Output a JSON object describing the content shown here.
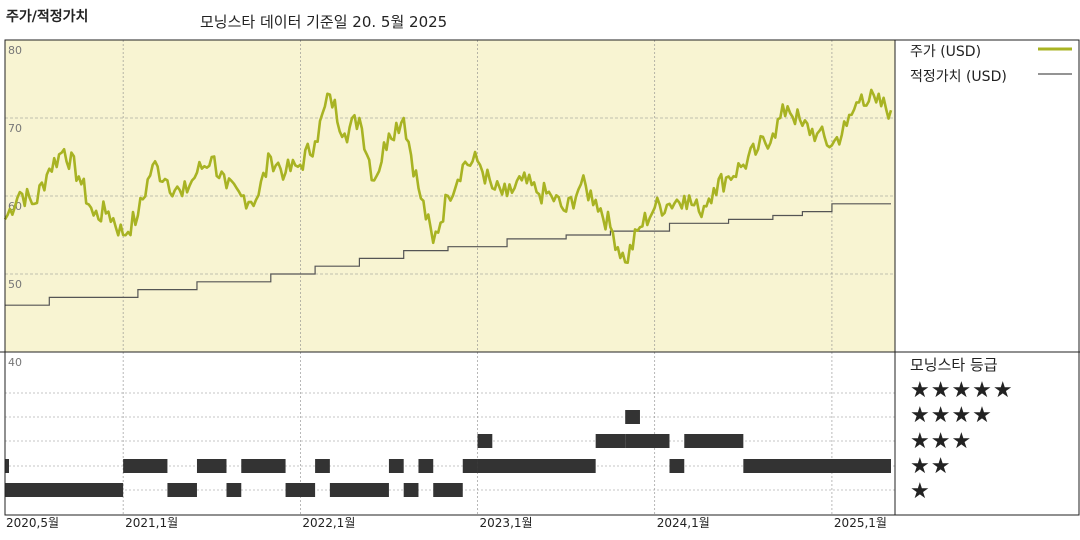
{
  "header": {
    "left_title": "주가/적정가치",
    "subtitle": "모닝스타 데이터 기준일 20. 5월 2025"
  },
  "legend": {
    "price_label": "주가 (USD)",
    "fair_value_label": "적정가치 (USD)",
    "price_color": "#a8b323",
    "fair_value_color": "#555555"
  },
  "rating_panel": {
    "title": "모닝스타 등급",
    "levels": [
      "★★★★★",
      "★★★★",
      "★★★",
      "★★",
      "★"
    ]
  },
  "colors": {
    "upper_bg": "#f8f4d2",
    "bar_color": "#333333",
    "grid": "#8a8a8a"
  },
  "chart_data": {
    "type": "line",
    "title": "주가/적정가치",
    "x_tick_labels": [
      "2020,5월",
      "2021,1월",
      "2022,1월",
      "2023,1월",
      "2024,1월",
      "2025,1월"
    ],
    "x_tick_dates": [
      "2020-05",
      "2021-01",
      "2022-01",
      "2023-01",
      "2024-01",
      "2025-01"
    ],
    "x_range": [
      "2020-05",
      "2025-05"
    ],
    "y_tick_labels": [
      "80",
      "70",
      "60",
      "50",
      "40"
    ],
    "ylim": [
      40,
      80
    ],
    "grid": true,
    "series": [
      {
        "name": "주가 (USD)",
        "x": [
          "2020-05",
          "2020-06",
          "2020-07",
          "2020-08",
          "2020-09",
          "2020-10",
          "2020-11",
          "2020-12",
          "2021-01",
          "2021-02",
          "2021-03",
          "2021-04",
          "2021-05",
          "2021-06",
          "2021-07",
          "2021-08",
          "2021-09",
          "2021-10",
          "2021-11",
          "2021-12",
          "2022-01",
          "2022-02",
          "2022-03",
          "2022-04",
          "2022-05",
          "2022-06",
          "2022-07",
          "2022-08",
          "2022-09",
          "2022-10",
          "2022-11",
          "2022-12",
          "2023-01",
          "2023-02",
          "2023-03",
          "2023-04",
          "2023-05",
          "2023-06",
          "2023-07",
          "2023-08",
          "2023-09",
          "2023-10",
          "2023-11",
          "2023-12",
          "2024-01",
          "2024-02",
          "2024-03",
          "2024-04",
          "2024-05",
          "2024-06",
          "2024-07",
          "2024-08",
          "2024-09",
          "2024-10",
          "2024-11",
          "2024-12",
          "2025-01",
          "2025-02",
          "2025-03",
          "2025-04",
          "2025-05"
        ],
        "values": [
          57.0,
          60.5,
          59.0,
          63.5,
          66.0,
          62.5,
          57.5,
          58.0,
          55.0,
          57.5,
          64.0,
          62.0,
          60.0,
          63.0,
          65.0,
          61.0,
          60.0,
          59.5,
          65.0,
          63.0,
          64.0,
          67.0,
          73.0,
          68.0,
          70.0,
          62.0,
          68.0,
          70.0,
          61.0,
          54.0,
          60.0,
          64.0,
          64.5,
          61.0,
          60.0,
          62.0,
          60.5,
          60.0,
          58.0,
          61.5,
          59.5,
          56.0,
          51.5,
          56.0,
          58.5,
          59.0,
          60.0,
          58.0,
          61.0,
          62.5,
          64.0,
          66.0,
          68.0,
          71.5,
          69.0,
          68.0,
          66.5,
          69.0,
          73.0,
          72.0,
          71.0
        ]
      },
      {
        "name": "적정가치 (USD)",
        "x": [
          "2020-05",
          "2020-08",
          "2021-02",
          "2021-06",
          "2021-11",
          "2022-02",
          "2022-05",
          "2022-08",
          "2022-11",
          "2023-03",
          "2023-07",
          "2023-10",
          "2024-02",
          "2024-06",
          "2024-09",
          "2024-11",
          "2025-01",
          "2025-05"
        ],
        "values": [
          46.0,
          47.0,
          48.0,
          49.0,
          50.0,
          51.0,
          52.0,
          53.0,
          53.5,
          54.5,
          55.0,
          55.5,
          56.5,
          57.0,
          57.5,
          58.0,
          59.0,
          59.0
        ]
      }
    ],
    "rating_bars": [
      {
        "start": "2020-05",
        "end": "2020-05",
        "stars": 2
      },
      {
        "start": "2020-05",
        "end": "2021-01",
        "stars": 1
      },
      {
        "start": "2021-01",
        "end": "2021-04",
        "stars": 2
      },
      {
        "start": "2021-04",
        "end": "2021-06",
        "stars": 1
      },
      {
        "start": "2021-06",
        "end": "2021-08",
        "stars": 2
      },
      {
        "start": "2021-08",
        "end": "2021-09",
        "stars": 1
      },
      {
        "start": "2021-09",
        "end": "2021-12",
        "stars": 2
      },
      {
        "start": "2021-12",
        "end": "2022-02",
        "stars": 1
      },
      {
        "start": "2022-02",
        "end": "2022-03",
        "stars": 2
      },
      {
        "start": "2022-03",
        "end": "2022-07",
        "stars": 1
      },
      {
        "start": "2022-07",
        "end": "2022-08",
        "stars": 2
      },
      {
        "start": "2022-08",
        "end": "2022-09",
        "stars": 1
      },
      {
        "start": "2022-09",
        "end": "2022-10",
        "stars": 2
      },
      {
        "start": "2022-10",
        "end": "2022-12",
        "stars": 1
      },
      {
        "start": "2022-12",
        "end": "2023-01",
        "stars": 2
      },
      {
        "start": "2023-01",
        "end": "2023-02",
        "stars": 3
      },
      {
        "start": "2023-01",
        "end": "2023-09",
        "stars": 2
      },
      {
        "start": "2023-09",
        "end": "2023-11",
        "stars": 3
      },
      {
        "start": "2023-11",
        "end": "2023-12",
        "stars": 4
      },
      {
        "start": "2023-11",
        "end": "2024-02",
        "stars": 3
      },
      {
        "start": "2024-02",
        "end": "2024-03",
        "stars": 2
      },
      {
        "start": "2024-03",
        "end": "2024-07",
        "stars": 3
      },
      {
        "start": "2024-07",
        "end": "2025-05",
        "stars": 2
      }
    ]
  }
}
